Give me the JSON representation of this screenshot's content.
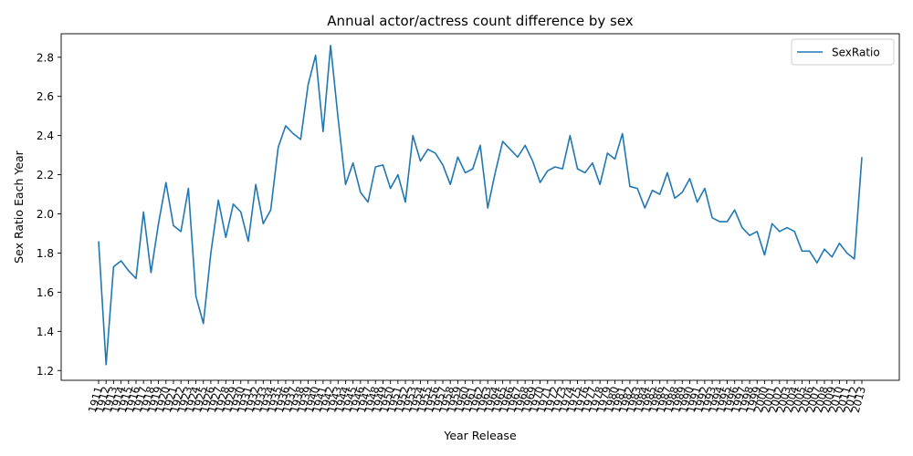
{
  "chart_data": {
    "type": "line",
    "title": "Annual actor/actress count difference by sex",
    "xlabel": "Year Release",
    "ylabel": "Sex Ratio Each Year",
    "ylim": [
      1.15,
      2.92
    ],
    "yticks": [
      1.2,
      1.4,
      1.6,
      1.8,
      2.0,
      2.2,
      2.4,
      2.6,
      2.8
    ],
    "ytick_labels": [
      "1.2",
      "1.4",
      "1.6",
      "1.8",
      "2.0",
      "2.2",
      "2.4",
      "2.6",
      "2.8"
    ],
    "legend": "top-right",
    "grid": false,
    "color": "#1f77b4",
    "categories": [
      "1911",
      "1912",
      "1913",
      "1914",
      "1915",
      "1916",
      "1917",
      "1918",
      "1919",
      "1920",
      "1921",
      "1922",
      "1923",
      "1924",
      "1925",
      "1926",
      "1927",
      "1928",
      "1929",
      "1930",
      "1931",
      "1932",
      "1933",
      "1934",
      "1935",
      "1936",
      "1937",
      "1938",
      "1939",
      "1940",
      "1941",
      "1942",
      "1943",
      "1944",
      "1945",
      "1946",
      "1947",
      "1948",
      "1949",
      "1950",
      "1951",
      "1952",
      "1953",
      "1954",
      "1955",
      "1956",
      "1957",
      "1958",
      "1959",
      "1960",
      "1961",
      "1962",
      "1963",
      "1964",
      "1965",
      "1966",
      "1967",
      "1968",
      "1969",
      "1970",
      "1971",
      "1972",
      "1973",
      "1974",
      "1975",
      "1976",
      "1977",
      "1978",
      "1979",
      "1980",
      "1981",
      "1982",
      "1983",
      "1984",
      "1985",
      "1986",
      "1987",
      "1988",
      "1989",
      "1990",
      "1991",
      "1992",
      "1993",
      "1994",
      "1995",
      "1996",
      "1997",
      "1998",
      "1999",
      "2000",
      "2001",
      "2002",
      "2003",
      "2004",
      "2005",
      "2006",
      "2007",
      "2008",
      "2009",
      "2010",
      "2011",
      "2012",
      "2013"
    ],
    "series": [
      {
        "name": "SexRatio",
        "values": [
          1.86,
          1.23,
          1.73,
          1.76,
          1.71,
          1.67,
          2.01,
          1.7,
          1.95,
          2.16,
          1.94,
          1.91,
          2.13,
          1.58,
          1.44,
          1.8,
          2.07,
          1.88,
          2.05,
          2.01,
          1.86,
          2.15,
          1.95,
          2.02,
          2.34,
          2.45,
          2.41,
          2.38,
          2.66,
          2.81,
          2.42,
          2.86,
          2.49,
          2.15,
          2.26,
          2.11,
          2.06,
          2.24,
          2.25,
          2.13,
          2.2,
          2.06,
          2.4,
          2.27,
          2.33,
          2.31,
          2.25,
          2.15,
          2.29,
          2.21,
          2.23,
          2.35,
          2.03,
          2.21,
          2.37,
          2.33,
          2.29,
          2.35,
          2.27,
          2.16,
          2.22,
          2.24,
          2.23,
          2.4,
          2.23,
          2.21,
          2.26,
          2.15,
          2.31,
          2.28,
          2.41,
          2.14,
          2.13,
          2.03,
          2.12,
          2.1,
          2.21,
          2.08,
          2.11,
          2.18,
          2.06,
          2.13,
          1.98,
          1.96,
          1.96,
          2.02,
          1.93,
          1.89,
          1.91,
          1.79,
          1.95,
          1.91,
          1.93,
          1.91,
          1.81,
          1.81,
          1.75,
          1.82,
          1.78,
          1.85,
          1.8,
          1.77,
          2.29
        ]
      }
    ]
  }
}
